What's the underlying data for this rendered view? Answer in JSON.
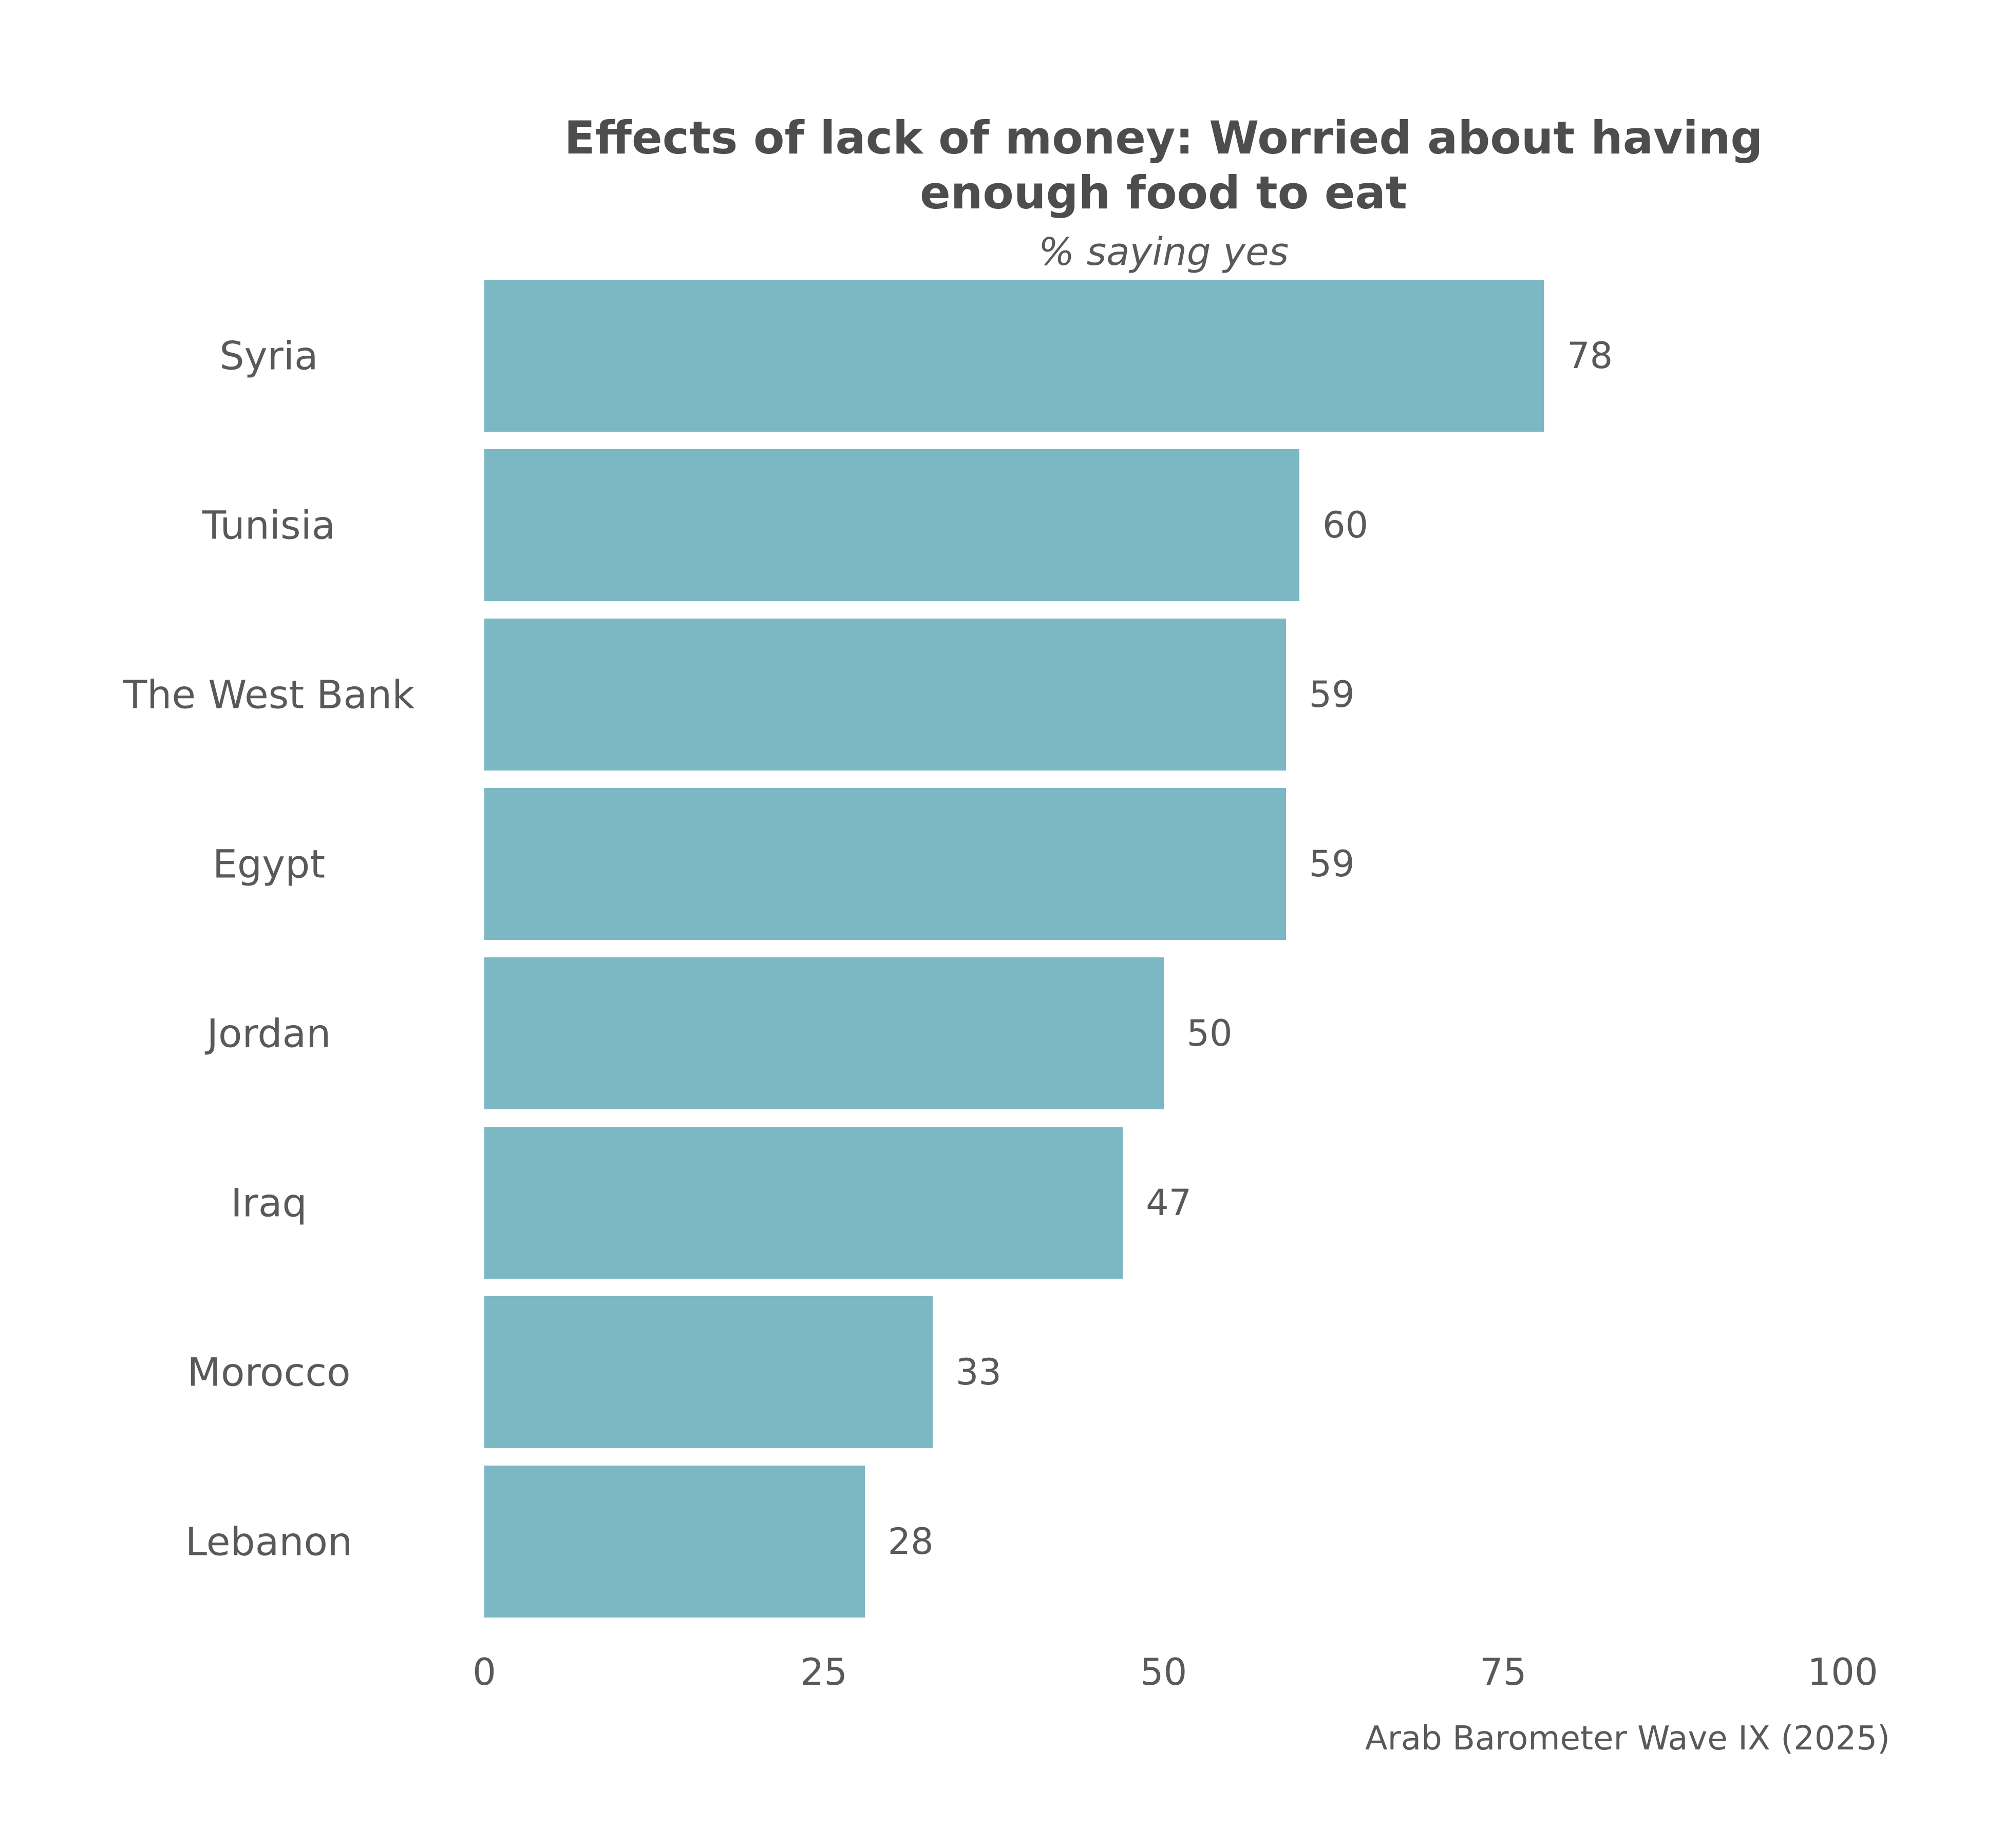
{
  "chart_data": {
    "type": "bar",
    "orientation": "horizontal",
    "title": "Effects of lack of money: Worried about having enough food to eat",
    "subtitle": "% saying yes",
    "source": "Arab Barometer Wave IX (2025)",
    "categories": [
      "Syria",
      "Tunisia",
      "The West Bank",
      "Egypt",
      "Jordan",
      "Iraq",
      "Morocco",
      "Lebanon"
    ],
    "values": [
      78,
      60,
      59,
      59,
      50,
      47,
      33,
      28
    ],
    "x_ticks": [
      "0",
      "25",
      "50",
      "75",
      "100"
    ],
    "xlim": [
      0,
      100
    ],
    "grid": false,
    "legend": false,
    "bar_color": "#7cb8c4",
    "text_color": "#595959",
    "title_color": "#4d4d4d"
  }
}
